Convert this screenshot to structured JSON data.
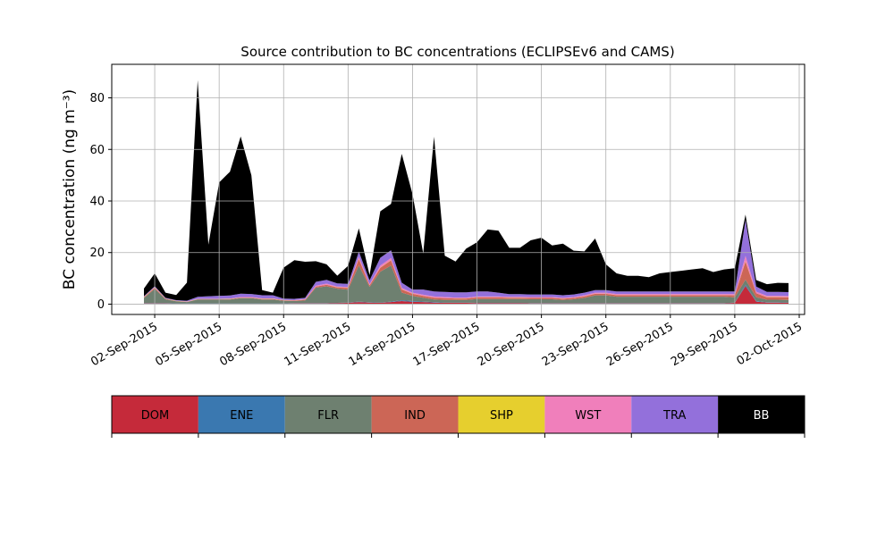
{
  "chart_data": {
    "type": "area",
    "stacked": true,
    "title": "Source contribution to BC concentrations (ECLIPSEv6 and CAMS)",
    "ylabel": "BC concentration (ng m⁻³)",
    "xlabel": "",
    "ylim": [
      -4,
      93
    ],
    "xlim": [
      "2015-08-31T00:00",
      "2015-10-02T06:00"
    ],
    "yticks": [
      0,
      20,
      40,
      60,
      80
    ],
    "xticks": [
      "02-Sep-2015",
      "05-Sep-2015",
      "08-Sep-2015",
      "11-Sep-2015",
      "14-Sep-2015",
      "17-Sep-2015",
      "20-Sep-2015",
      "23-Sep-2015",
      "26-Sep-2015",
      "29-Sep-2015",
      "02-Oct-2015"
    ],
    "xtick_dates": [
      "2015-09-02",
      "2015-09-05",
      "2015-09-08",
      "2015-09-11",
      "2015-09-14",
      "2015-09-17",
      "2015-09-20",
      "2015-09-23",
      "2015-09-26",
      "2015-09-29",
      "2015-10-02"
    ],
    "grid": true,
    "legend_position": "below",
    "x": [
      "2015-09-01T12:00",
      "2015-09-02T00:00",
      "2015-09-02T12:00",
      "2015-09-03T00:00",
      "2015-09-03T12:00",
      "2015-09-04T00:00",
      "2015-09-04T12:00",
      "2015-09-05T00:00",
      "2015-09-05T12:00",
      "2015-09-06T00:00",
      "2015-09-06T12:00",
      "2015-09-07T00:00",
      "2015-09-07T12:00",
      "2015-09-08T00:00",
      "2015-09-08T12:00",
      "2015-09-09T00:00",
      "2015-09-09T12:00",
      "2015-09-10T00:00",
      "2015-09-10T12:00",
      "2015-09-11T00:00",
      "2015-09-11T12:00",
      "2015-09-12T00:00",
      "2015-09-12T12:00",
      "2015-09-13T00:00",
      "2015-09-13T12:00",
      "2015-09-14T00:00",
      "2015-09-14T12:00",
      "2015-09-15T00:00",
      "2015-09-15T12:00",
      "2015-09-16T00:00",
      "2015-09-16T12:00",
      "2015-09-17T00:00",
      "2015-09-17T12:00",
      "2015-09-18T00:00",
      "2015-09-18T12:00",
      "2015-09-19T00:00",
      "2015-09-19T12:00",
      "2015-09-20T00:00",
      "2015-09-20T12:00",
      "2015-09-21T00:00",
      "2015-09-21T12:00",
      "2015-09-22T00:00",
      "2015-09-22T12:00",
      "2015-09-23T00:00",
      "2015-09-23T12:00",
      "2015-09-24T00:00",
      "2015-09-24T12:00",
      "2015-09-25T00:00",
      "2015-09-25T12:00",
      "2015-09-26T00:00",
      "2015-09-26T12:00",
      "2015-09-27T00:00",
      "2015-09-27T12:00",
      "2015-09-28T00:00",
      "2015-09-28T12:00",
      "2015-09-29T00:00",
      "2015-09-29T12:00",
      "2015-09-30T00:00",
      "2015-09-30T12:00",
      "2015-10-01T00:00",
      "2015-10-01T12:00"
    ],
    "series": [
      {
        "name": "DOM",
        "color": "#c52a3a",
        "values": [
          0.3,
          0.3,
          0.3,
          0.2,
          0.2,
          0.2,
          0.2,
          0.2,
          0.2,
          0.2,
          0.2,
          0.2,
          0.2,
          0.2,
          0.3,
          0.3,
          0.3,
          0.3,
          0.4,
          0.5,
          0.8,
          0.6,
          0.5,
          0.8,
          1.2,
          0.9,
          0.8,
          0.6,
          0.5,
          0.5,
          0.5,
          0.4,
          0.4,
          0.4,
          0.4,
          0.4,
          0.3,
          0.3,
          0.3,
          0.3,
          0.3,
          0.3,
          0.3,
          0.3,
          0.3,
          0.3,
          0.3,
          0.3,
          0.3,
          0.3,
          0.3,
          0.3,
          0.3,
          0.3,
          0.3,
          0.5,
          7.0,
          1.0,
          0.6,
          0.6,
          0.5
        ]
      },
      {
        "name": "ENE",
        "color": "#3a78b0",
        "values": [
          0.1,
          0.1,
          0.1,
          0.1,
          0.1,
          0.1,
          0.1,
          0.1,
          0.1,
          0.1,
          0.1,
          0.1,
          0.1,
          0.1,
          0.1,
          0.1,
          0.1,
          0.1,
          0.1,
          0.1,
          0.2,
          0.1,
          0.1,
          0.2,
          0.3,
          0.3,
          0.2,
          0.2,
          0.1,
          0.1,
          0.1,
          0.1,
          0.1,
          0.1,
          0.1,
          0.1,
          0.1,
          0.1,
          0.1,
          0.1,
          0.1,
          0.1,
          0.1,
          0.1,
          0.1,
          0.1,
          0.1,
          0.1,
          0.1,
          0.1,
          0.1,
          0.1,
          0.1,
          0.1,
          0.1,
          0.1,
          0.5,
          0.2,
          0.1,
          0.1,
          0.1
        ]
      },
      {
        "name": "FLR",
        "color": "#6e8070",
        "values": [
          2.0,
          5.5,
          1.5,
          0.8,
          0.5,
          1.5,
          1.5,
          1.5,
          1.5,
          2.0,
          2.0,
          1.5,
          1.5,
          1.0,
          0.8,
          1.0,
          6.0,
          6.5,
          5.5,
          5.0,
          14.0,
          6.0,
          12.0,
          14.0,
          3.0,
          2.0,
          1.5,
          1.0,
          1.0,
          1.0,
          1.0,
          1.5,
          1.5,
          1.5,
          1.5,
          1.5,
          1.5,
          1.5,
          1.5,
          1.2,
          1.5,
          2.0,
          3.0,
          3.0,
          2.5,
          2.5,
          2.5,
          2.5,
          2.5,
          2.5,
          2.5,
          2.5,
          2.5,
          2.5,
          2.5,
          2.0,
          2.0,
          1.5,
          1.0,
          1.0,
          1.0
        ]
      },
      {
        "name": "IND",
        "color": "#cc6656",
        "values": [
          0.3,
          0.5,
          0.2,
          0.1,
          0.1,
          0.1,
          0.1,
          0.1,
          0.2,
          0.2,
          0.2,
          0.2,
          0.2,
          0.2,
          0.2,
          0.3,
          0.4,
          0.6,
          0.5,
          0.7,
          2.5,
          0.6,
          1.5,
          2.0,
          1.2,
          0.8,
          0.7,
          0.7,
          0.7,
          0.6,
          0.6,
          0.6,
          0.6,
          0.6,
          0.5,
          0.5,
          0.5,
          0.5,
          0.5,
          0.5,
          0.5,
          0.6,
          0.6,
          0.6,
          0.6,
          0.6,
          0.6,
          0.6,
          0.6,
          0.6,
          0.6,
          0.6,
          0.6,
          0.6,
          0.6,
          0.8,
          7.0,
          1.5,
          1.0,
          1.0,
          1.0
        ]
      },
      {
        "name": "SHP",
        "color": "#e6cf2e",
        "values": [
          0.05,
          0.05,
          0.05,
          0.05,
          0.05,
          0.05,
          0.05,
          0.05,
          0.05,
          0.05,
          0.05,
          0.05,
          0.05,
          0.05,
          0.05,
          0.05,
          0.05,
          0.05,
          0.05,
          0.05,
          0.1,
          0.05,
          0.1,
          0.1,
          0.1,
          0.05,
          0.05,
          0.05,
          0.05,
          0.05,
          0.05,
          0.05,
          0.05,
          0.05,
          0.05,
          0.05,
          0.05,
          0.05,
          0.05,
          0.05,
          0.05,
          0.05,
          0.05,
          0.05,
          0.05,
          0.05,
          0.05,
          0.05,
          0.05,
          0.05,
          0.05,
          0.05,
          0.05,
          0.05,
          0.05,
          0.05,
          0.2,
          0.05,
          0.05,
          0.05,
          0.05
        ]
      },
      {
        "name": "WST",
        "color": "#f07fbb",
        "values": [
          0.1,
          0.2,
          0.1,
          0.1,
          0.1,
          0.1,
          0.1,
          0.1,
          0.1,
          0.2,
          0.2,
          0.2,
          0.2,
          0.1,
          0.1,
          0.2,
          0.3,
          0.4,
          0.3,
          0.3,
          0.8,
          0.4,
          0.8,
          0.8,
          0.5,
          0.4,
          0.4,
          0.4,
          0.4,
          0.3,
          0.3,
          0.3,
          0.3,
          0.3,
          0.3,
          0.3,
          0.3,
          0.3,
          0.3,
          0.3,
          0.3,
          0.4,
          0.4,
          0.4,
          0.4,
          0.4,
          0.4,
          0.4,
          0.4,
          0.4,
          0.4,
          0.4,
          0.4,
          0.4,
          0.4,
          0.5,
          2.0,
          0.6,
          0.5,
          0.5,
          0.5
        ]
      },
      {
        "name": "TRA",
        "color": "#9370db",
        "values": [
          0.2,
          0.3,
          0.2,
          0.2,
          0.3,
          0.8,
          1.0,
          1.2,
          1.2,
          1.3,
          1.2,
          1.2,
          1.2,
          0.5,
          0.5,
          0.5,
          1.5,
          1.5,
          1.2,
          1.2,
          2.0,
          1.5,
          3.0,
          3.0,
          2.0,
          1.2,
          2.0,
          2.0,
          2.0,
          2.0,
          2.0,
          2.0,
          2.0,
          1.5,
          1.0,
          1.0,
          1.0,
          1.0,
          1.0,
          1.0,
          1.0,
          1.0,
          1.0,
          1.0,
          1.0,
          1.0,
          1.0,
          1.0,
          1.0,
          1.0,
          1.0,
          1.0,
          1.0,
          1.0,
          1.0,
          1.0,
          14.0,
          2.0,
          1.5,
          1.5,
          1.5
        ]
      },
      {
        "name": "BB",
        "color": "#000000",
        "values": [
          3.0,
          5.0,
          2.0,
          2.0,
          7.0,
          84.0,
          20.0,
          44.0,
          48.0,
          61.0,
          46.0,
          2.0,
          1.0,
          12.0,
          15.0,
          14.0,
          8.0,
          6.0,
          3.0,
          7.0,
          9.0,
          2.0,
          18.0,
          18.0,
          50.0,
          37.0,
          14.0,
          60.0,
          14.0,
          12.0,
          17.0,
          19.0,
          24.0,
          24.0,
          18.0,
          18.0,
          21.0,
          22.0,
          19.0,
          20.0,
          17.0,
          16.0,
          20.0,
          10.0,
          7.0,
          6.0,
          6.0,
          5.5,
          7.0,
          7.5,
          8.0,
          8.5,
          9.0,
          7.5,
          8.5,
          9.0,
          2.0,
          2.5,
          3.0,
          3.5,
          3.5
        ]
      }
    ]
  }
}
